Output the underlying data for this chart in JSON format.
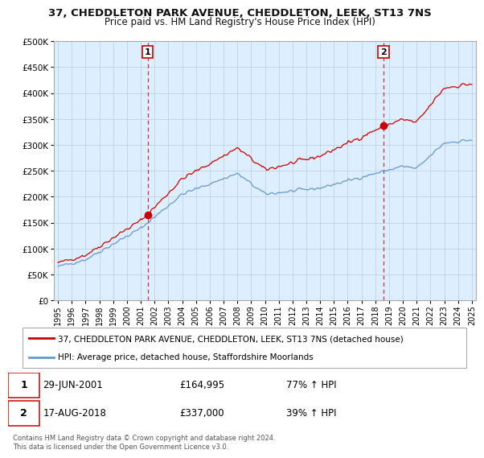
{
  "title1": "37, CHEDDLETON PARK AVENUE, CHEDDLETON, LEEK, ST13 7NS",
  "title2": "Price paid vs. HM Land Registry's House Price Index (HPI)",
  "legend_label_red": "37, CHEDDLETON PARK AVENUE, CHEDDLETON, LEEK, ST13 7NS (detached house)",
  "legend_label_blue": "HPI: Average price, detached house, Staffordshire Moorlands",
  "annotation1_label": "1",
  "annotation1_date": "29-JUN-2001",
  "annotation1_price": "£164,995",
  "annotation1_hpi": "77% ↑ HPI",
  "annotation2_label": "2",
  "annotation2_date": "17-AUG-2018",
  "annotation2_price": "£337,000",
  "annotation2_hpi": "39% ↑ HPI",
  "footer": "Contains HM Land Registry data © Crown copyright and database right 2024.\nThis data is licensed under the Open Government Licence v3.0.",
  "sale1_year": 2001.5,
  "sale1_value": 164995,
  "sale2_year": 2018.6,
  "sale2_value": 337000,
  "ylim_max": 500000,
  "ylim_min": 0,
  "red_color": "#cc0000",
  "blue_color": "#6699cc",
  "plot_bg_color": "#ddeeff",
  "background_color": "#ffffff",
  "grid_color": "#bbccdd"
}
